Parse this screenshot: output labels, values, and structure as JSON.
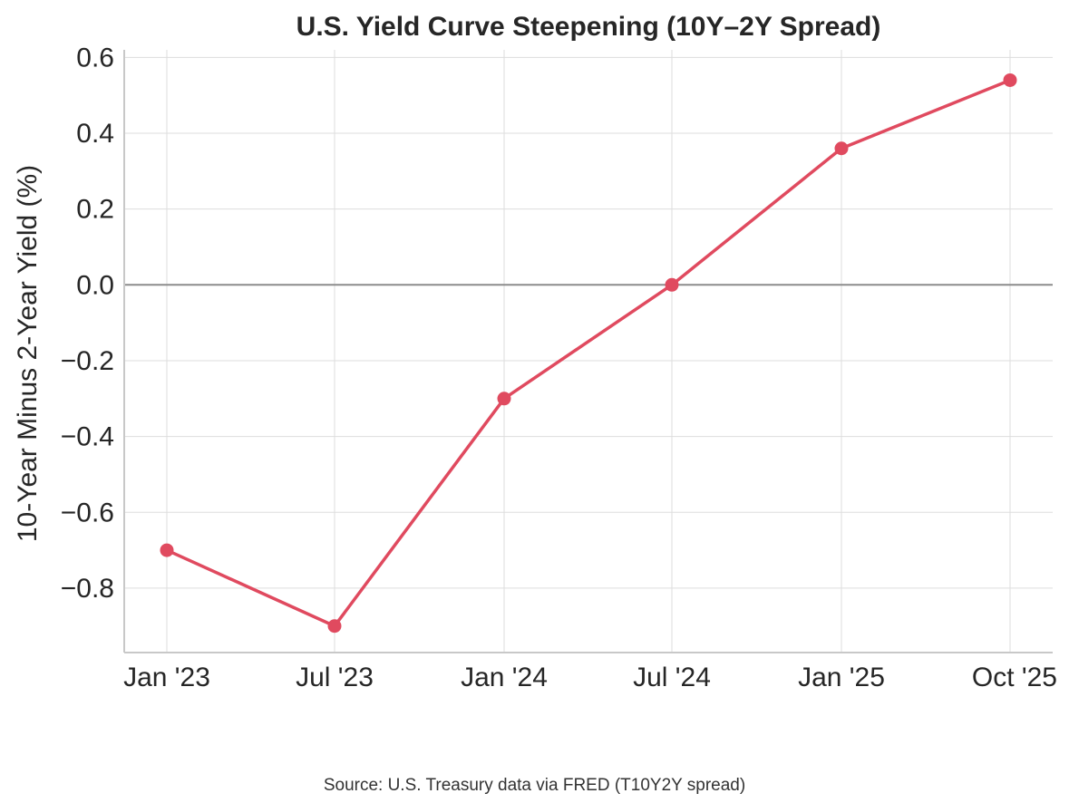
{
  "chart_data": {
    "type": "line",
    "title": "U.S. Yield Curve Steepening (10Y–2Y Spread)",
    "xlabel": "",
    "ylabel": "10-Year Minus 2-Year Yield (%)",
    "categories": [
      "Jan '23",
      "Jul '23",
      "Jan '24",
      "Jul '24",
      "Jan '25",
      "Oct '25"
    ],
    "series": [
      {
        "name": "10Y–2Y Spread",
        "values": [
          -0.7,
          -0.9,
          -0.3,
          0.0,
          0.36,
          0.54
        ],
        "color": "#e04a5f"
      }
    ],
    "ylim": [
      -0.97,
      0.62
    ],
    "yticks": [
      0.6,
      0.4,
      0.2,
      0.0,
      -0.2,
      -0.4,
      -0.6,
      -0.8
    ],
    "ytick_labels": [
      "0.6",
      "0.4",
      "0.2",
      "0.0",
      "−0.2",
      "−0.4",
      "−0.6",
      "−0.8"
    ],
    "zero_line": 0.0,
    "grid": true,
    "source": "Source: U.S. Treasury data via FRED (T10Y2Y spread)"
  },
  "colors": {
    "line": "#e04a5f",
    "grid": "#dddddd",
    "zero": "#8c8c8c",
    "axis": "#c8c8c8",
    "text": "#262626"
  }
}
